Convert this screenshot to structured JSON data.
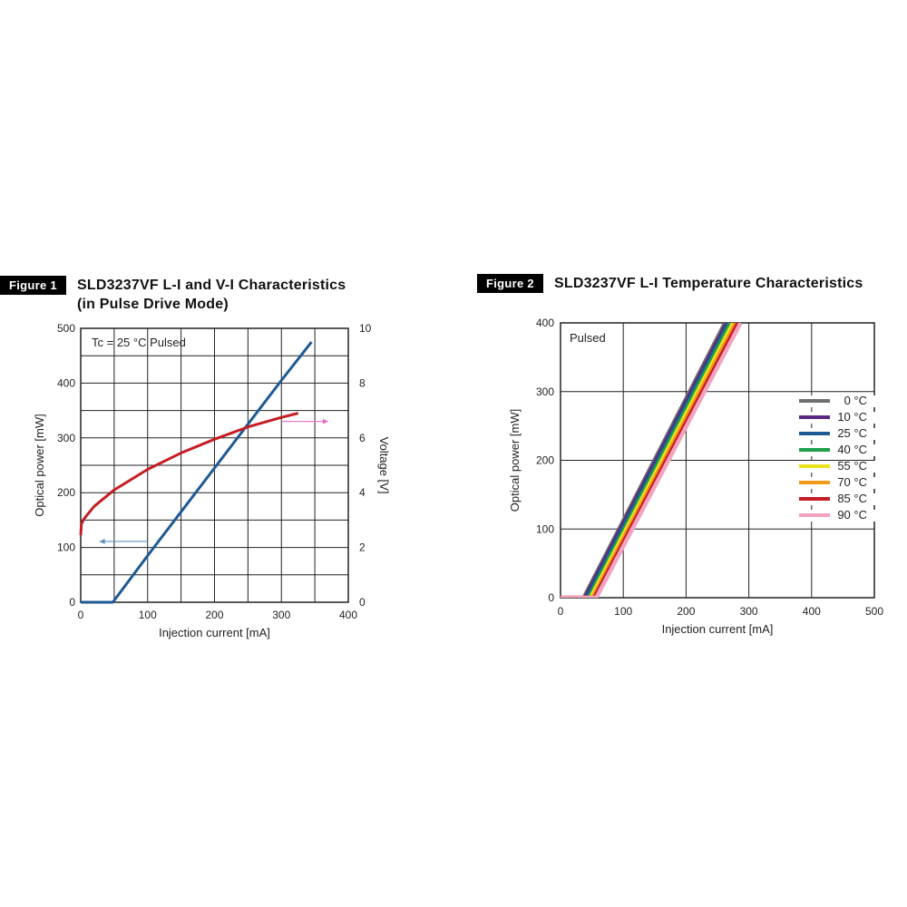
{
  "figure1": {
    "badge": "Figure 1",
    "title_line1": "SLD3237VF L-I and V-I Characteristics",
    "title_line2": "(in Pulse Drive Mode)"
  },
  "figure2": {
    "badge": "Figure 2",
    "title_line1": "SLD3237VF L-I Temperature Characteristics"
  },
  "chart_data": [
    {
      "type": "line",
      "annotation": "Tc = 25 °C   Pulsed",
      "xlabel": "Injection current [mA]",
      "ylabel": "Optical power [mW]",
      "y2label": "Voltage [V]",
      "xlim": [
        0,
        400
      ],
      "ylim": [
        0,
        500
      ],
      "y2lim": [
        0,
        10
      ],
      "xticks": [
        "0",
        "100",
        "200",
        "300",
        "400"
      ],
      "yticks": [
        "0",
        "100",
        "200",
        "300",
        "400",
        "500"
      ],
      "y2ticks": [
        "0",
        "2",
        "4",
        "6",
        "8",
        "10"
      ],
      "grid": true,
      "series": [
        {
          "axis": "left",
          "color": "#1d5a94",
          "x": [
            0,
            48,
            100,
            150,
            200,
            250,
            300,
            345
          ],
          "y": [
            0,
            0,
            85,
            165,
            245,
            325,
            405,
            475
          ]
        },
        {
          "axis": "right",
          "color": "#c41e24",
          "x": [
            0,
            1,
            5,
            20,
            50,
            100,
            150,
            200,
            250,
            300,
            325
          ],
          "y": [
            2.45,
            2.85,
            3.05,
            3.5,
            4.1,
            4.85,
            5.45,
            5.95,
            6.4,
            6.75,
            6.9
          ]
        }
      ],
      "arrows": [
        {
          "color": "#5b8fc8",
          "from": [
            100,
            111
          ],
          "to": [
            28,
            111
          ],
          "axis": "left"
        },
        {
          "color": "#e070c0",
          "from": [
            300,
            6.6
          ],
          "to": [
            370,
            6.6
          ],
          "axis": "right"
        }
      ]
    },
    {
      "type": "line",
      "annotation": "Pulsed",
      "xlabel": "Injection current [mA]",
      "ylabel": "Optical power [mW]",
      "xlim": [
        0,
        500
      ],
      "ylim": [
        0,
        400
      ],
      "xticks": [
        "0",
        "100",
        "200",
        "300",
        "400",
        "500"
      ],
      "yticks": [
        "0",
        "100",
        "200",
        "300",
        "400"
      ],
      "grid": true,
      "legend": "right",
      "series": [
        {
          "name": "0 °C",
          "color": "#6f6f6f",
          "x": [
            0,
            37,
            262
          ],
          "y": [
            0,
            0,
            400
          ]
        },
        {
          "name": "10 °C",
          "color": "#5a2a82",
          "x": [
            0,
            39,
            265
          ],
          "y": [
            0,
            0,
            400
          ]
        },
        {
          "name": "25 °C",
          "color": "#1d5a94",
          "x": [
            0,
            42,
            268
          ],
          "y": [
            0,
            0,
            400
          ]
        },
        {
          "name": "40 °C",
          "color": "#1ea04a",
          "x": [
            0,
            45,
            271
          ],
          "y": [
            0,
            0,
            400
          ]
        },
        {
          "name": "55 °C",
          "color": "#ece31b",
          "x": [
            0,
            48,
            275
          ],
          "y": [
            0,
            0,
            400
          ]
        },
        {
          "name": "70 °C",
          "color": "#f49a1b",
          "x": [
            0,
            51,
            279
          ],
          "y": [
            0,
            0,
            400
          ]
        },
        {
          "name": "85 °C",
          "color": "#c41e24",
          "x": [
            0,
            54,
            283
          ],
          "y": [
            0,
            0,
            400
          ]
        },
        {
          "name": "90 °C",
          "color": "#f3a3c1",
          "x": [
            0,
            57,
            287
          ],
          "y": [
            0,
            0,
            400
          ]
        }
      ]
    }
  ]
}
